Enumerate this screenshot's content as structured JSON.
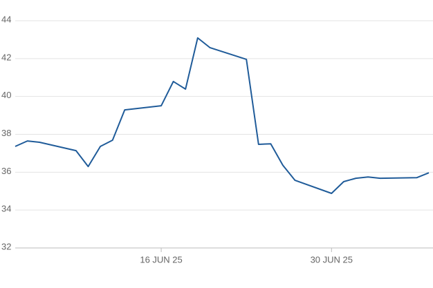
{
  "chart_data": {
    "type": "line",
    "x": [
      "2025-06-04",
      "2025-06-05",
      "2025-06-06",
      "2025-06-09",
      "2025-06-10",
      "2025-06-11",
      "2025-06-12",
      "2025-06-13",
      "2025-06-16",
      "2025-06-17",
      "2025-06-18",
      "2025-06-19",
      "2025-06-20",
      "2025-06-23",
      "2025-06-24",
      "2025-06-25",
      "2025-06-26",
      "2025-06-27",
      "2025-06-30",
      "2025-07-01",
      "2025-07-02",
      "2025-07-03",
      "2025-07-04",
      "2025-07-07",
      "2025-07-08"
    ],
    "series": [
      {
        "color": "#1f5b99",
        "values": [
          37.36,
          37.65,
          37.58,
          37.14,
          36.3,
          37.36,
          37.69,
          39.29,
          39.51,
          40.79,
          40.39,
          43.09,
          42.58,
          41.96,
          37.47,
          37.5,
          36.37,
          35.57,
          34.88,
          35.5,
          35.68,
          35.75,
          35.68,
          35.71,
          35.97
        ]
      }
    ],
    "xlim": [
      "2025-06-04",
      "2025-07-08"
    ],
    "xticks": [
      {
        "value": "2025-06-16",
        "label": "16 JUN 25"
      },
      {
        "value": "2025-06-30",
        "label": "30 JUN 25"
      }
    ],
    "ylim": [
      32,
      44
    ],
    "yticks": [
      32,
      34,
      36,
      38,
      40,
      42,
      44
    ],
    "grid": true
  }
}
